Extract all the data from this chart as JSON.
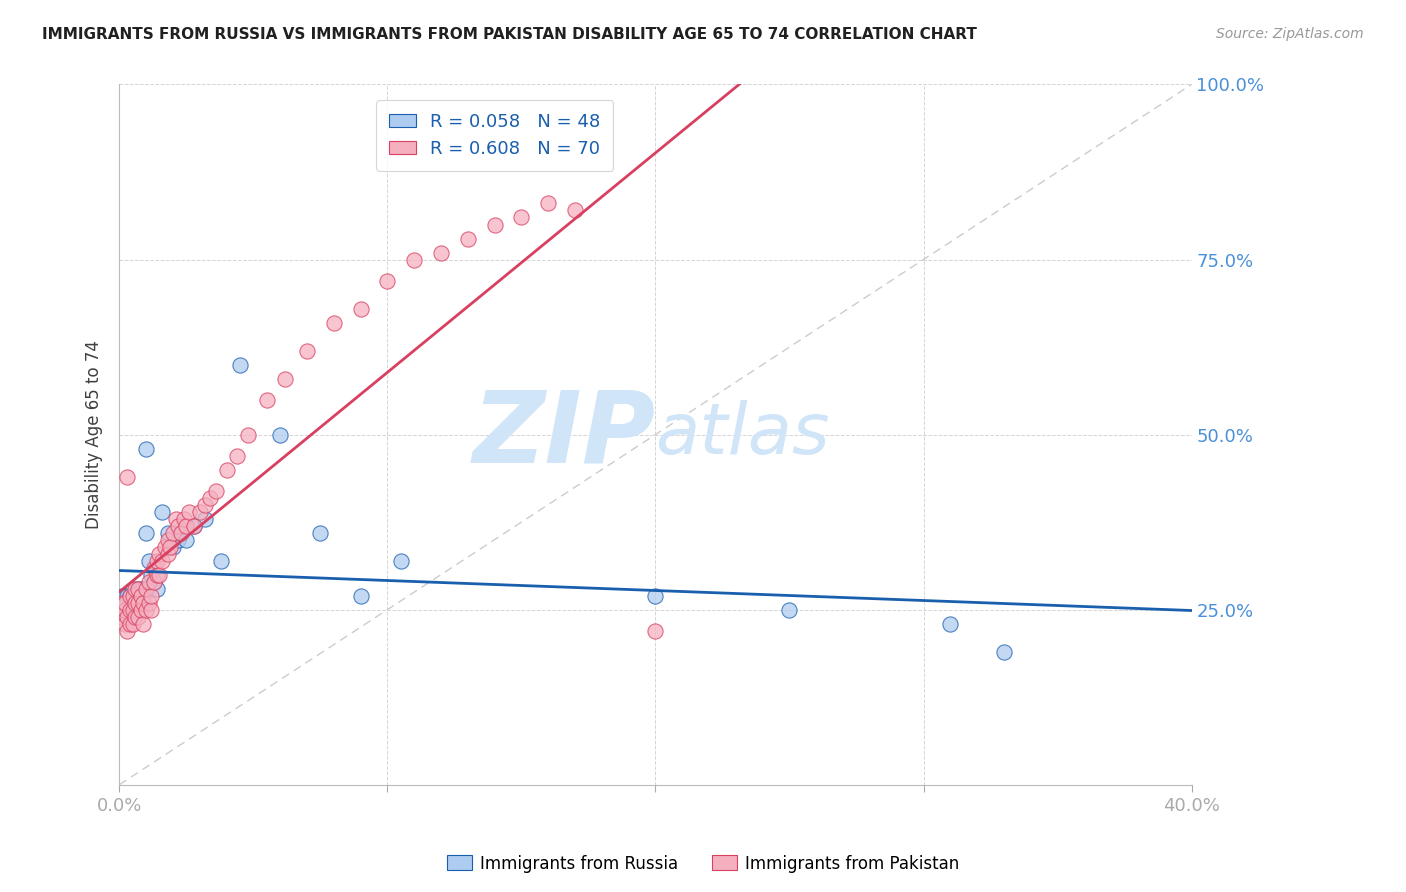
{
  "title": "IMMIGRANTS FROM RUSSIA VS IMMIGRANTS FROM PAKISTAN DISABILITY AGE 65 TO 74 CORRELATION CHART",
  "source": "Source: ZipAtlas.com",
  "ylabel": "Disability Age 65 to 74",
  "xlim": [
    0.0,
    0.4
  ],
  "ylim": [
    0.0,
    1.0
  ],
  "yticks": [
    0.0,
    0.25,
    0.5,
    0.75,
    1.0
  ],
  "ytick_labels": [
    "",
    "25.0%",
    "50.0%",
    "75.0%",
    "100.0%"
  ],
  "xticks": [
    0.0,
    0.1,
    0.2,
    0.3,
    0.4
  ],
  "xtick_labels": [
    "0.0%",
    "",
    "",
    "",
    "40.0%"
  ],
  "russia_R": 0.058,
  "russia_N": 48,
  "pakistan_R": 0.608,
  "pakistan_N": 70,
  "legend_label_russia": "Immigrants from Russia",
  "legend_label_pakistan": "Immigrants from Pakistan",
  "color_russia": "#aeccf0",
  "color_pakistan": "#f5b0c0",
  "color_russia_line": "#1a5fad",
  "color_pakistan_line": "#d94060",
  "color_title": "#202020",
  "color_axis_labels_blue": "#4a90d9",
  "color_legend_text": "#1a5fad",
  "watermark_zip": "ZIP",
  "watermark_atlas": "atlas",
  "watermark_color": "#d0e5f8",
  "russia_x": [
    0.001,
    0.001,
    0.002,
    0.002,
    0.002,
    0.003,
    0.003,
    0.003,
    0.003,
    0.004,
    0.004,
    0.004,
    0.005,
    0.005,
    0.005,
    0.005,
    0.006,
    0.006,
    0.007,
    0.007,
    0.007,
    0.008,
    0.008,
    0.009,
    0.009,
    0.01,
    0.01,
    0.011,
    0.012,
    0.013,
    0.014,
    0.016,
    0.018,
    0.02,
    0.022,
    0.025,
    0.028,
    0.032,
    0.038,
    0.045,
    0.06,
    0.075,
    0.09,
    0.105,
    0.2,
    0.25,
    0.31,
    0.33
  ],
  "russia_y": [
    0.27,
    0.26,
    0.25,
    0.27,
    0.26,
    0.24,
    0.26,
    0.25,
    0.27,
    0.25,
    0.27,
    0.24,
    0.24,
    0.26,
    0.25,
    0.28,
    0.26,
    0.27,
    0.25,
    0.27,
    0.28,
    0.26,
    0.28,
    0.27,
    0.28,
    0.48,
    0.36,
    0.32,
    0.3,
    0.29,
    0.28,
    0.39,
    0.36,
    0.34,
    0.35,
    0.35,
    0.37,
    0.38,
    0.32,
    0.6,
    0.5,
    0.36,
    0.27,
    0.32,
    0.27,
    0.25,
    0.23,
    0.19
  ],
  "pakistan_x": [
    0.001,
    0.001,
    0.002,
    0.002,
    0.002,
    0.003,
    0.003,
    0.003,
    0.004,
    0.004,
    0.004,
    0.005,
    0.005,
    0.005,
    0.006,
    0.006,
    0.006,
    0.007,
    0.007,
    0.007,
    0.008,
    0.008,
    0.009,
    0.009,
    0.01,
    0.01,
    0.011,
    0.011,
    0.012,
    0.012,
    0.013,
    0.013,
    0.014,
    0.014,
    0.015,
    0.015,
    0.016,
    0.017,
    0.018,
    0.018,
    0.019,
    0.02,
    0.021,
    0.022,
    0.023,
    0.024,
    0.025,
    0.026,
    0.028,
    0.03,
    0.032,
    0.034,
    0.036,
    0.04,
    0.044,
    0.048,
    0.055,
    0.062,
    0.07,
    0.08,
    0.09,
    0.1,
    0.11,
    0.12,
    0.13,
    0.14,
    0.15,
    0.16,
    0.17,
    0.2
  ],
  "pakistan_y": [
    0.26,
    0.24,
    0.23,
    0.25,
    0.26,
    0.22,
    0.24,
    0.44,
    0.23,
    0.25,
    0.27,
    0.23,
    0.25,
    0.27,
    0.24,
    0.26,
    0.28,
    0.24,
    0.26,
    0.28,
    0.25,
    0.27,
    0.23,
    0.26,
    0.25,
    0.28,
    0.26,
    0.29,
    0.25,
    0.27,
    0.29,
    0.31,
    0.3,
    0.32,
    0.3,
    0.33,
    0.32,
    0.34,
    0.33,
    0.35,
    0.34,
    0.36,
    0.38,
    0.37,
    0.36,
    0.38,
    0.37,
    0.39,
    0.37,
    0.39,
    0.4,
    0.41,
    0.42,
    0.45,
    0.47,
    0.5,
    0.55,
    0.58,
    0.62,
    0.66,
    0.68,
    0.72,
    0.75,
    0.76,
    0.78,
    0.8,
    0.81,
    0.83,
    0.82,
    0.22
  ]
}
